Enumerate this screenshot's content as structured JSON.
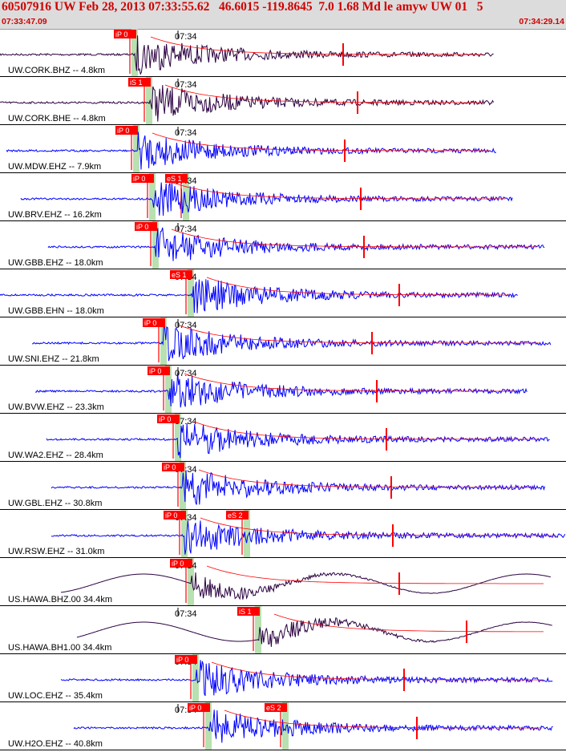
{
  "header": {
    "title": "60507916 UW Feb 28, 2013 07:33:55.62   46.6015 -119.8645  7.0 1.68 Md le amyw UW 01   5",
    "time_start": "07:33:47.09",
    "time_end": "07:34:29.14"
  },
  "minute_label": "07:34",
  "colors": {
    "trace_blue": "#0000ff",
    "trace_dark": "#2a0040",
    "pick": "#ff0000",
    "pick_window": "#b8e0b0",
    "header_bg": "#dcdcdc"
  },
  "traces": [
    {
      "label": "UW.CORK.BHZ -- 4.8km",
      "picks": [
        {
          "label": "iP 0",
          "x": 162
        }
      ],
      "style": "dark"
    },
    {
      "label": "UW.CORK.BHE -- 4.8km",
      "picks": [
        {
          "label": "iS 1",
          "x": 180
        }
      ],
      "style": "dark"
    },
    {
      "label": "UW.MDW.EHZ -- 7.9km",
      "picks": [
        {
          "label": "iP 0",
          "x": 164
        }
      ],
      "style": "blue"
    },
    {
      "label": "UW.BRV.EHZ -- 16.2km",
      "picks": [
        {
          "label": "iP 0",
          "x": 184
        },
        {
          "label": "eS 1",
          "x": 226
        }
      ],
      "style": "blue"
    },
    {
      "label": "UW.GBB.EHZ -- 18.0km",
      "picks": [
        {
          "label": "iP 0",
          "x": 188
        }
      ],
      "style": "blue"
    },
    {
      "label": "UW.GBB.EHN -- 18.0km",
      "picks": [
        {
          "label": "eS 1",
          "x": 232
        }
      ],
      "style": "blue"
    },
    {
      "label": "UW.SNI.EHZ -- 21.8km",
      "picks": [
        {
          "label": "iP 0",
          "x": 198
        }
      ],
      "style": "blue"
    },
    {
      "label": "UW.BVW.EHZ -- 23.3km",
      "picks": [
        {
          "label": "iP 0",
          "x": 204
        }
      ],
      "style": "blue"
    },
    {
      "label": "UW.WA2.EHZ -- 28.4km",
      "picks": [
        {
          "label": "iP 0",
          "x": 216
        }
      ],
      "style": "blue"
    },
    {
      "label": "UW.GBL.EHZ -- 30.8km",
      "picks": [
        {
          "label": "iP 0",
          "x": 222
        }
      ],
      "style": "blue"
    },
    {
      "label": "UW.RSW.EHZ -- 31.0km",
      "picks": [
        {
          "label": "iP 0",
          "x": 224
        },
        {
          "label": "eS 2",
          "x": 302
        }
      ],
      "style": "blue"
    },
    {
      "label": "US.HAWA.BHZ.00 34.4km",
      "picks": [
        {
          "label": "iP 0",
          "x": 232
        }
      ],
      "style": "dark"
    },
    {
      "label": "US.HAWA.BH1.00 34.4km",
      "picks": [
        {
          "label": "iS 1",
          "x": 316
        }
      ],
      "style": "dark"
    },
    {
      "label": "UW.LOC.EHZ -- 35.4km",
      "picks": [
        {
          "label": "iP 0",
          "x": 238
        }
      ],
      "style": "blue"
    },
    {
      "label": "UW.H2O.EHZ -- 40.8km",
      "picks": [
        {
          "label": "iP 0",
          "x": 254
        },
        {
          "label": "eS 2",
          "x": 350
        }
      ],
      "style": "blue"
    }
  ]
}
